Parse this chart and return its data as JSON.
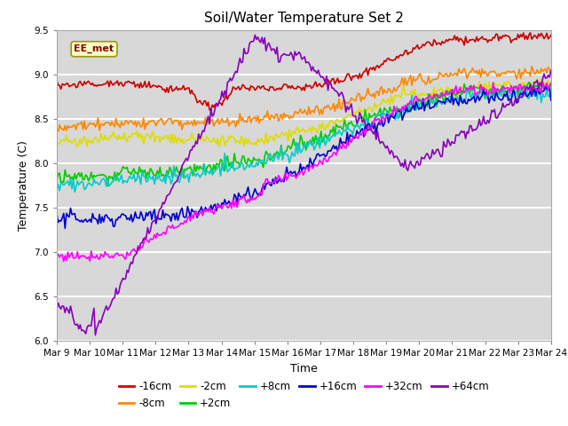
{
  "title": "Soil/Water Temperature Set 2",
  "xlabel": "Time",
  "ylabel": "Temperature (C)",
  "ylim": [
    6.0,
    9.5
  ],
  "annotation": "EE_met",
  "x_tick_labels": [
    "Mar 9",
    "Mar 10",
    "Mar 11",
    "Mar 12",
    "Mar 13",
    "Mar 14",
    "Mar 15",
    "Mar 16",
    "Mar 17",
    "Mar 18",
    "Mar 19",
    "Mar 20",
    "Mar 21",
    "Mar 22",
    "Mar 23",
    "Mar 24"
  ],
  "colors": {
    "-16cm": "#cc0000",
    "-8cm": "#ff8800",
    "-2cm": "#dddd00",
    "+2cm": "#00cc00",
    "+8cm": "#00cccc",
    "+16cm": "#0000cc",
    "+32cm": "#ff00ff",
    "+64cm": "#8800bb"
  },
  "legend_row1": [
    "-16cm",
    "-8cm",
    "-2cm",
    "+2cm",
    "+8cm",
    "+16cm"
  ],
  "legend_row2": [
    "+32cm",
    "+64cm"
  ],
  "plot_bg": "#e0e0e0",
  "grid_color": "#f0f0f0"
}
